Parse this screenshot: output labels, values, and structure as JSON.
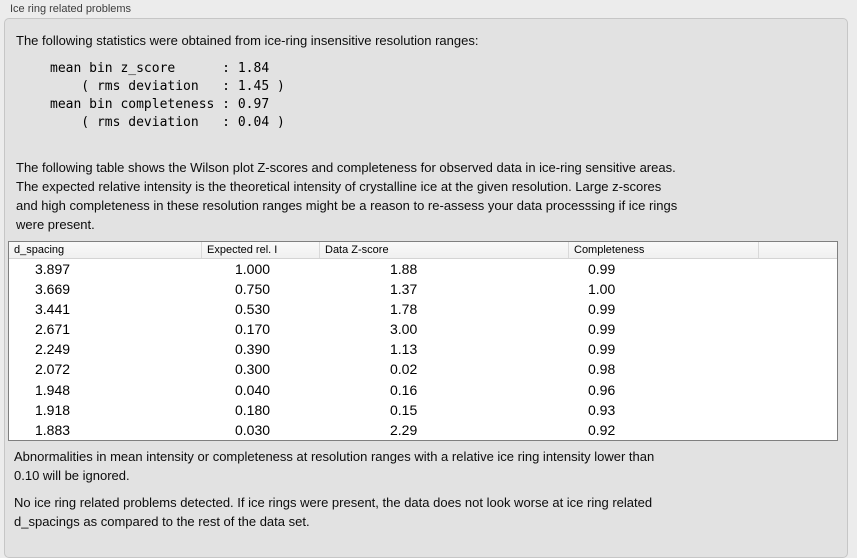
{
  "window": {
    "section_title": "Ice ring related problems"
  },
  "intro": "The following statistics were obtained from ice-ring insensitive resolution ranges:",
  "stats_block": [
    "mean bin z_score      : 1.84",
    "    ( rms deviation   : 1.45 )",
    "mean bin completeness : 0.97",
    "    ( rms deviation   : 0.04 )"
  ],
  "description": [
    "The following table shows the Wilson plot Z-scores and completeness for observed data in ice-ring sensitive areas.",
    "The expected relative intensity is the theoretical intensity of crystalline ice at the given resolution. Large z-scores",
    "and high completeness in these resolution ranges might be a reason to re-assess your data processsing if ice rings",
    "were present."
  ],
  "table": {
    "headers": [
      "d_spacing",
      "Expected rel. I",
      "Data Z-score",
      "Completeness",
      ""
    ],
    "rows": [
      [
        "3.897",
        "1.000",
        "1.88",
        "0.99"
      ],
      [
        "3.669",
        "0.750",
        "1.37",
        "1.00"
      ],
      [
        "3.441",
        "0.530",
        "1.78",
        "0.99"
      ],
      [
        "2.671",
        "0.170",
        "3.00",
        "0.99"
      ],
      [
        "2.249",
        "0.390",
        "1.13",
        "0.99"
      ],
      [
        "2.072",
        "0.300",
        "0.02",
        "0.98"
      ],
      [
        "1.948",
        "0.040",
        "0.16",
        "0.96"
      ],
      [
        "1.918",
        "0.180",
        "0.15",
        "0.93"
      ],
      [
        "1.883",
        "0.030",
        "2.29",
        "0.92"
      ]
    ]
  },
  "note": [
    "Abnormalities in mean intensity or completeness at resolution ranges with a relative ice ring intensity lower than",
    "0.10 will be ignored."
  ],
  "conclusion": [
    "No ice ring related problems detected. If ice rings were present, the data does not look worse at ice ring related",
    "d_spacings as compared to the rest of the data set."
  ]
}
